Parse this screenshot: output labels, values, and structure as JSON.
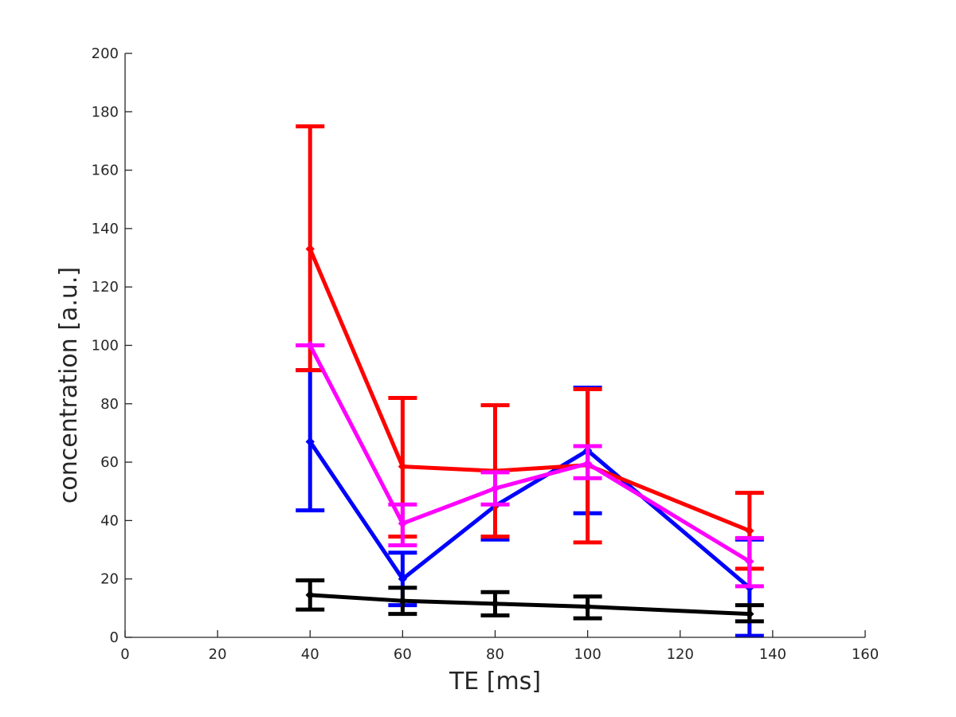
{
  "chart_data": {
    "type": "line",
    "title": "",
    "xlabel": "TE [ms]",
    "ylabel": "concentration [a.u.]",
    "xlim": [
      0,
      160
    ],
    "ylim": [
      0,
      200
    ],
    "xticks": [
      0,
      20,
      40,
      60,
      80,
      100,
      120,
      140,
      160
    ],
    "yticks": [
      0,
      20,
      40,
      60,
      80,
      100,
      120,
      140,
      160,
      180,
      200
    ],
    "grid": false,
    "legend": "none",
    "series": [
      {
        "name": "blue",
        "color": "#0000ff",
        "x": [
          40,
          60,
          80,
          100,
          135
        ],
        "y": [
          67,
          20,
          45,
          64,
          17
        ],
        "err_low": [
          43.5,
          11,
          33.5,
          42.5,
          0.5
        ],
        "err_high": [
          91.5,
          29,
          57,
          85.5,
          33.5
        ]
      },
      {
        "name": "red",
        "color": "#ff0000",
        "x": [
          40,
          60,
          80,
          100,
          135
        ],
        "y": [
          133,
          58.5,
          57,
          59,
          36.5
        ],
        "err_low": [
          91.5,
          34.5,
          34.5,
          32.5,
          23.5
        ],
        "err_high": [
          175,
          82,
          79.5,
          85,
          49.5
        ]
      },
      {
        "name": "magenta",
        "color": "#ff00ff",
        "x": [
          40,
          60,
          80,
          100,
          135
        ],
        "y": [
          100,
          39,
          51,
          59.5,
          26
        ],
        "err_low": [
          100,
          31.5,
          45.5,
          54.5,
          17.5
        ],
        "err_high": [
          100,
          45.5,
          56.5,
          65.5,
          34
        ]
      },
      {
        "name": "black",
        "color": "#000000",
        "x": [
          40,
          60,
          80,
          100,
          135
        ],
        "y": [
          14.5,
          12.5,
          11.5,
          10.5,
          8
        ],
        "err_low": [
          9.5,
          8,
          7.5,
          6.5,
          5.5
        ],
        "err_high": [
          19.5,
          17,
          15.5,
          14,
          11
        ]
      }
    ]
  }
}
